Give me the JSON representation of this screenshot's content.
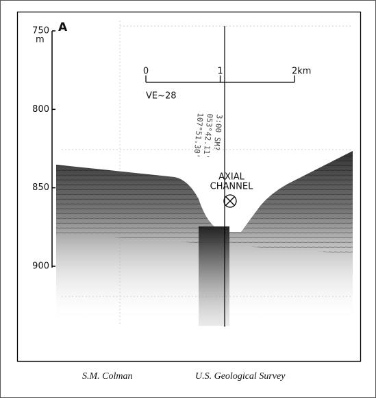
{
  "figure": {
    "panel_label": "A",
    "depth_axis": {
      "unit": "m",
      "ylim": [
        750,
        900
      ],
      "ticks": [
        750,
        800,
        850,
        900
      ]
    },
    "scale_bar": {
      "xlim": [
        0,
        2
      ],
      "ticks": [
        0,
        1,
        {
          "value": 2,
          "label": "2km"
        }
      ],
      "note": "VE~28"
    },
    "handwritten": [
      "3:00 SM?",
      "053°42.11'",
      "107°51.30'"
    ],
    "feature_label": [
      "AXIAL",
      "CHANNEL"
    ],
    "credits": {
      "author": "S.M. Colman",
      "agency": "U.S. Geological Survey"
    }
  }
}
